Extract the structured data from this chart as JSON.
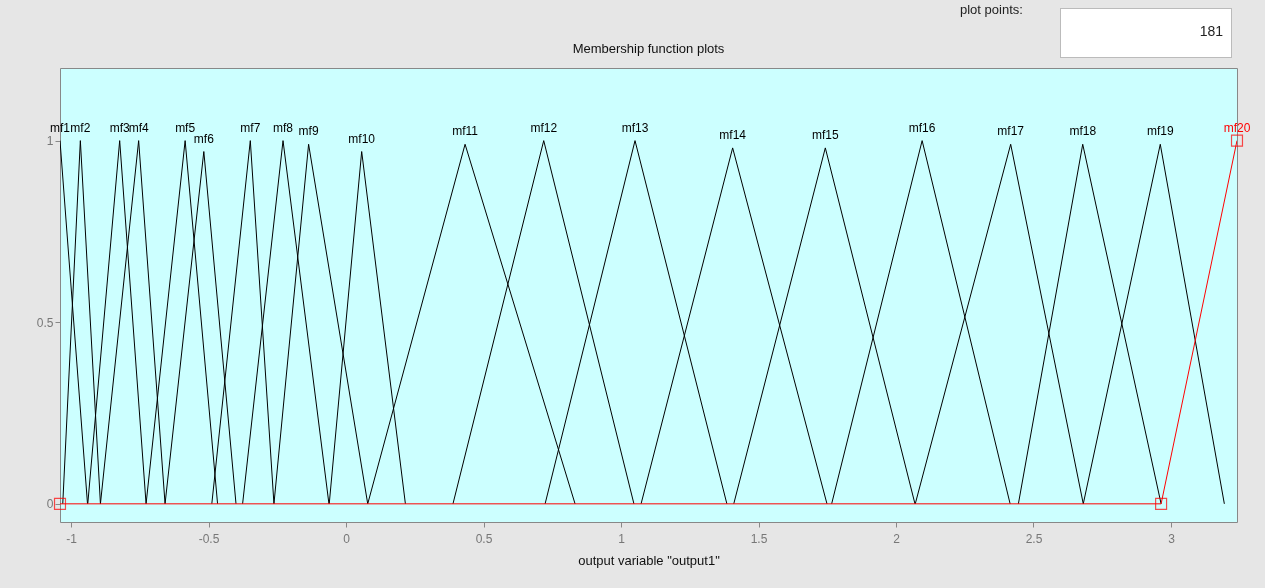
{
  "chart_data": {
    "type": "line",
    "title": "Membership function plots",
    "xlabel": "output variable \"output1\"",
    "xlim": [
      -1.04,
      3.24
    ],
    "xticks": [
      -1,
      -0.5,
      0,
      0.5,
      1,
      1.5,
      2,
      2.5,
      3
    ],
    "ylim": [
      -0.05,
      1.2
    ],
    "yticks": [
      0,
      0.5,
      1
    ],
    "grid": false,
    "legend": false,
    "marker": "none",
    "line_style": "solid",
    "annotations": [
      "plot points:",
      "181"
    ],
    "series": [
      {
        "name": "mf1",
        "color": "#000000",
        "x": [
          -1.04,
          -0.94
        ],
        "values": [
          1,
          0
        ]
      },
      {
        "name": "mf2",
        "color": "#000000",
        "x": [
          -1.03,
          -0.966,
          -0.893
        ],
        "values": [
          0,
          1,
          0
        ]
      },
      {
        "name": "mf3",
        "color": "#000000",
        "x": [
          -0.939,
          -0.823,
          -0.727
        ],
        "values": [
          0,
          1,
          0
        ]
      },
      {
        "name": "mf4",
        "color": "#000000",
        "x": [
          -0.893,
          -0.754,
          -0.658
        ],
        "values": [
          0,
          1,
          0
        ]
      },
      {
        "name": "mf5",
        "color": "#000000",
        "x": [
          -0.727,
          -0.585,
          -0.467
        ],
        "values": [
          0,
          1,
          0
        ]
      },
      {
        "name": "mf6",
        "color": "#000000",
        "x": [
          -0.658,
          -0.517,
          -0.4
        ],
        "values": [
          0,
          0.97,
          0
        ]
      },
      {
        "name": "mf7",
        "color": "#000000",
        "x": [
          -0.488,
          -0.348,
          -0.262
        ],
        "values": [
          0,
          1,
          0
        ]
      },
      {
        "name": "mf8",
        "color": "#000000",
        "x": [
          -0.376,
          -0.229,
          -0.062
        ],
        "values": [
          0,
          1,
          0
        ]
      },
      {
        "name": "mf9",
        "color": "#000000",
        "x": [
          -0.262,
          -0.136,
          0.079
        ],
        "values": [
          0,
          0.99,
          0
        ]
      },
      {
        "name": "mf10",
        "color": "#000000",
        "x": [
          -0.061,
          0.057,
          0.216
        ],
        "values": [
          0,
          0.97,
          0
        ]
      },
      {
        "name": "mf11",
        "color": "#000000",
        "x": [
          0.079,
          0.433,
          0.833
        ],
        "values": [
          0,
          0.99,
          0
        ]
      },
      {
        "name": "mf12",
        "color": "#000000",
        "x": [
          0.389,
          0.719,
          1.047
        ],
        "values": [
          0,
          1,
          0
        ]
      },
      {
        "name": "mf13",
        "color": "#000000",
        "x": [
          0.724,
          1.051,
          1.385
        ],
        "values": [
          0,
          1,
          0
        ]
      },
      {
        "name": "mf14",
        "color": "#000000",
        "x": [
          1.073,
          1.406,
          1.749
        ],
        "values": [
          0,
          0.98,
          0
        ]
      },
      {
        "name": "mf15",
        "color": "#000000",
        "x": [
          1.41,
          1.743,
          2.069
        ],
        "values": [
          0,
          0.98,
          0
        ]
      },
      {
        "name": "mf16",
        "color": "#000000",
        "x": [
          1.766,
          2.095,
          2.415
        ],
        "values": [
          0,
          1,
          0
        ]
      },
      {
        "name": "mf17",
        "color": "#000000",
        "x": [
          2.07,
          2.417,
          2.681
        ],
        "values": [
          0,
          0.99,
          0
        ]
      },
      {
        "name": "mf18",
        "color": "#000000",
        "x": [
          2.445,
          2.679,
          2.964
        ],
        "values": [
          0,
          0.99,
          0
        ]
      },
      {
        "name": "mf19",
        "color": "#000000",
        "x": [
          2.681,
          2.961,
          3.194
        ],
        "values": [
          0,
          0.99,
          0
        ]
      },
      {
        "name": "mf20",
        "color": "#ff0000",
        "marker": "square",
        "x": [
          -1.04,
          2.964,
          3.24
        ],
        "values": [
          0,
          0,
          1
        ]
      }
    ]
  }
}
